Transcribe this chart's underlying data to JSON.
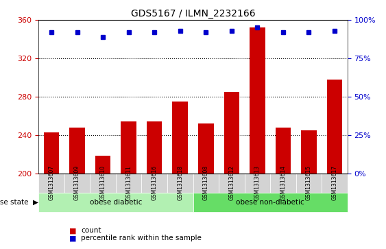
{
  "title": "GDS5167 / ILMN_2232166",
  "samples": [
    "GSM1313607",
    "GSM1313609",
    "GSM1313610",
    "GSM1313611",
    "GSM1313616",
    "GSM1313618",
    "GSM1313608",
    "GSM1313612",
    "GSM1313613",
    "GSM1313614",
    "GSM1313615",
    "GSM1313617"
  ],
  "counts": [
    243,
    248,
    218,
    254,
    254,
    275,
    252,
    285,
    352,
    248,
    245,
    298
  ],
  "percentiles": [
    92,
    92,
    89,
    92,
    92,
    93,
    92,
    93,
    95,
    92,
    92,
    93
  ],
  "bar_color": "#cc0000",
  "dot_color": "#0000cc",
  "ylim_left": [
    200,
    360
  ],
  "ylim_right": [
    0,
    100
  ],
  "yticks_left": [
    200,
    240,
    280,
    320,
    360
  ],
  "yticks_right": [
    0,
    25,
    50,
    75,
    100
  ],
  "groups": [
    {
      "label": "obese diabetic",
      "start": 0,
      "end": 6,
      "color": "#b2f0b2"
    },
    {
      "label": "obese non-diabetic",
      "start": 6,
      "end": 12,
      "color": "#66dd66"
    }
  ],
  "disease_state_label": "disease state",
  "legend_count_label": "count",
  "legend_percentile_label": "percentile rank within the sample",
  "background_color": "#ffffff",
  "plot_bg_color": "#ffffff",
  "tick_label_area_color": "#d3d3d3"
}
